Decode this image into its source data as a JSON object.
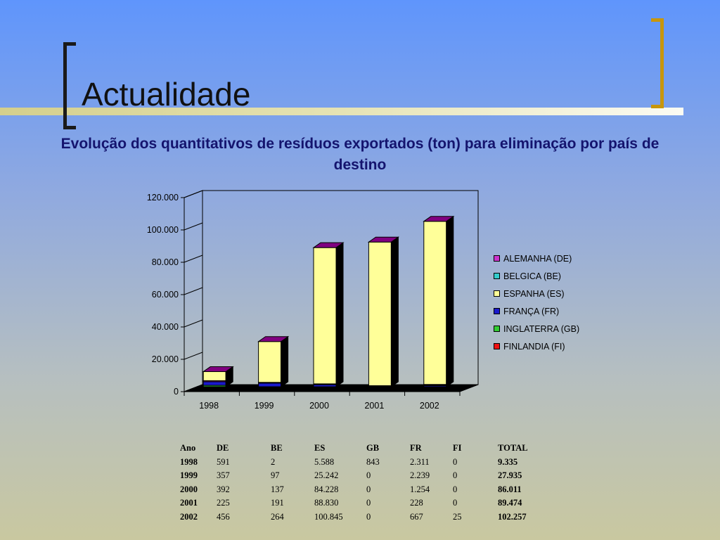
{
  "slide": {
    "title": "Actualidade",
    "subtitle": "Evolução dos quantitativos de resíduos exportados (ton) para eliminação por país de destino"
  },
  "colors": {
    "DE": "#cc33cc",
    "BE": "#33cccc",
    "ES": "#ffff99",
    "FR": "#1a1acc",
    "GB": "#33cc33",
    "FI": "#ee1111",
    "bar_top": "#800080",
    "bar_side": "#000000"
  },
  "chart_data": {
    "type": "bar",
    "stacked": true,
    "three_d": true,
    "categories": [
      "1998",
      "1999",
      "2000",
      "2001",
      "2002"
    ],
    "series": [
      {
        "name": "ALEMANHA (DE)",
        "key": "DE",
        "values": [
          591,
          357,
          392,
          225,
          456
        ]
      },
      {
        "name": "BELGICA (BE)",
        "key": "BE",
        "values": [
          2,
          97,
          137,
          191,
          264
        ]
      },
      {
        "name": "ESPANHA (ES)",
        "key": "ES",
        "values": [
          5588,
          25242,
          84228,
          88830,
          100845
        ]
      },
      {
        "name": "FRANÇA (FR)",
        "key": "FR",
        "values": [
          2311,
          2239,
          1254,
          228,
          667
        ]
      },
      {
        "name": "INGLATERRA (GB)",
        "key": "GB",
        "values": [
          843,
          0,
          0,
          0,
          0
        ]
      },
      {
        "name": "FINLANDIA (FI)",
        "key": "FI",
        "values": [
          0,
          0,
          0,
          0,
          25
        ]
      }
    ],
    "stack_order": [
      "FI",
      "GB",
      "FR",
      "BE",
      "DE",
      "ES"
    ],
    "yticks": [
      "0",
      "20.000",
      "40.000",
      "60.000",
      "80.000",
      "100.000",
      "120.000"
    ],
    "ylim": [
      0,
      120000
    ],
    "legend_position": "right",
    "title": "",
    "xlabel": "",
    "ylabel": ""
  },
  "table": {
    "headers": [
      "Ano",
      "DE",
      "BE",
      "ES",
      "GB",
      "FR",
      "FI",
      "TOTAL"
    ],
    "rows": [
      [
        "1998",
        "591",
        "2",
        "5.588",
        "843",
        "2.311",
        "0",
        "9.335"
      ],
      [
        "1999",
        "357",
        "97",
        "25.242",
        "0",
        "2.239",
        "0",
        "27.935"
      ],
      [
        "2000",
        "392",
        "137",
        "84.228",
        "0",
        "1.254",
        "0",
        "86.011"
      ],
      [
        "2001",
        "225",
        "191",
        "88.830",
        "0",
        "228",
        "0",
        "89.474"
      ],
      [
        "2002",
        "456",
        "264",
        "100.845",
        "0",
        "667",
        "25",
        "102.257"
      ]
    ]
  }
}
